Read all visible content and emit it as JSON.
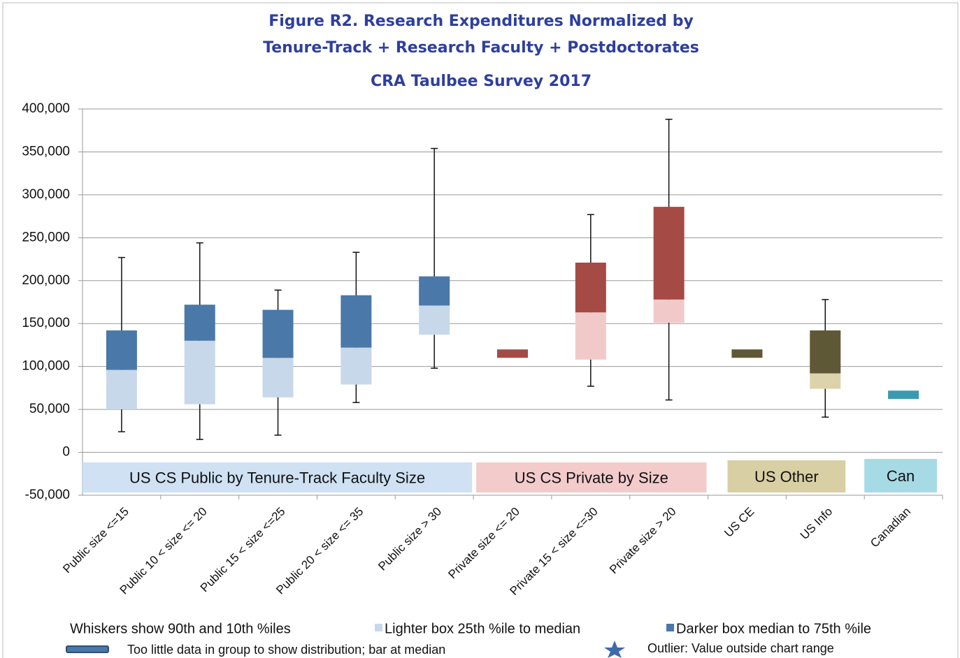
{
  "chart_data": {
    "type": "box",
    "title": [
      "Figure R2. Research Expenditures Normalized by",
      "Tenure-Track + Research Faculty + Postdoctorates"
    ],
    "subtitle": "CRA Taulbee Survey 2017",
    "categories": [
      "Public size <=15",
      "Public 10 < size <= 20",
      "Public 15 < size <=25",
      "Public 20 < size <= 35",
      "Public size > 30",
      "Private size <= 20",
      "Private 15 < size <=30",
      "Private size > 20",
      "US CE",
      "US Info",
      "Canadian"
    ],
    "boxes": [
      {
        "whisker_low": 24000,
        "q1": 50000,
        "median": 96000,
        "q3": 142000,
        "whisker_high": 227000,
        "dark_color": "#4a78a8",
        "light_color": "#c7d8ea"
      },
      {
        "whisker_low": 15000,
        "q1": 56000,
        "median": 130000,
        "q3": 172000,
        "whisker_high": 244000,
        "dark_color": "#4a78a8",
        "light_color": "#c7d8ea"
      },
      {
        "whisker_low": 20000,
        "q1": 64000,
        "median": 110000,
        "q3": 166000,
        "whisker_high": 189000,
        "dark_color": "#4a78a8",
        "light_color": "#c7d8ea"
      },
      {
        "whisker_low": 58000,
        "q1": 79000,
        "median": 122000,
        "q3": 183000,
        "whisker_high": 233000,
        "dark_color": "#4a78a8",
        "light_color": "#c7d8ea"
      },
      {
        "whisker_low": 98000,
        "q1": 137000,
        "median": 171000,
        "q3": 205000,
        "whisker_high": 354000,
        "dark_color": "#4a78a8",
        "light_color": "#c7d8ea"
      },
      {
        "whisker_low": null,
        "q1": null,
        "median": 115000,
        "q3": null,
        "whisker_high": null,
        "dark_color": "#a64a45",
        "light_color": "#f2c9c9"
      },
      {
        "whisker_low": 77000,
        "q1": 108000,
        "median": 163000,
        "q3": 221000,
        "whisker_high": 277000,
        "dark_color": "#a64a45",
        "light_color": "#f2c9c9"
      },
      {
        "whisker_low": 61000,
        "q1": 151000,
        "median": 178000,
        "q3": 286000,
        "whisker_high": 388000,
        "dark_color": "#a64a45",
        "light_color": "#f2c9c9"
      },
      {
        "whisker_low": null,
        "q1": null,
        "median": 115000,
        "q3": null,
        "whisker_high": null,
        "dark_color": "#5e5836",
        "light_color": "#dcd2ab"
      },
      {
        "whisker_low": 41000,
        "q1": 74000,
        "median": 92000,
        "q3": 142000,
        "whisker_high": 178000,
        "dark_color": "#5e5836",
        "light_color": "#dcd2ab"
      },
      {
        "whisker_low": null,
        "q1": null,
        "median": 67000,
        "q3": null,
        "whisker_high": null,
        "dark_color": "#3a9ab0",
        "light_color": "#a6dbe6"
      }
    ],
    "groups": [
      {
        "label": "US CS Public by Tenure-Track Faculty Size",
        "color": "#cfe1f3"
      },
      {
        "label": "US CS Private by Size",
        "color": "#f3cbcb"
      },
      {
        "label": "US Other",
        "color": "#d9cfa4"
      },
      {
        "label": "Can",
        "color": "#a6dbe6"
      }
    ],
    "ylim": [
      -50000,
      400000
    ],
    "yticks": [
      {
        "value": -50000,
        "label": "-50,000"
      },
      0,
      {
        "value": 50000,
        "label": "50,000"
      },
      {
        "value": 100000,
        "label": "100,000"
      },
      {
        "value": 150000,
        "label": "150,000"
      },
      {
        "value": 200000,
        "label": "200,000"
      },
      {
        "value": 250000,
        "label": "250,000"
      },
      {
        "value": 300000,
        "label": "300,000"
      },
      {
        "value": 350000,
        "label": "350,000"
      },
      {
        "value": 400000,
        "label": "400,000"
      }
    ],
    "grid": true,
    "notes": {
      "whiskers": "Whiskers show 90th and 10th %iles",
      "lighter": "Lighter box  25th %ile to median",
      "darker": "Darker box  median to 75th %ile",
      "bar": "Too little data in group to show distribution; bar at median",
      "outlier": "Outlier: Value outside chart range"
    }
  }
}
